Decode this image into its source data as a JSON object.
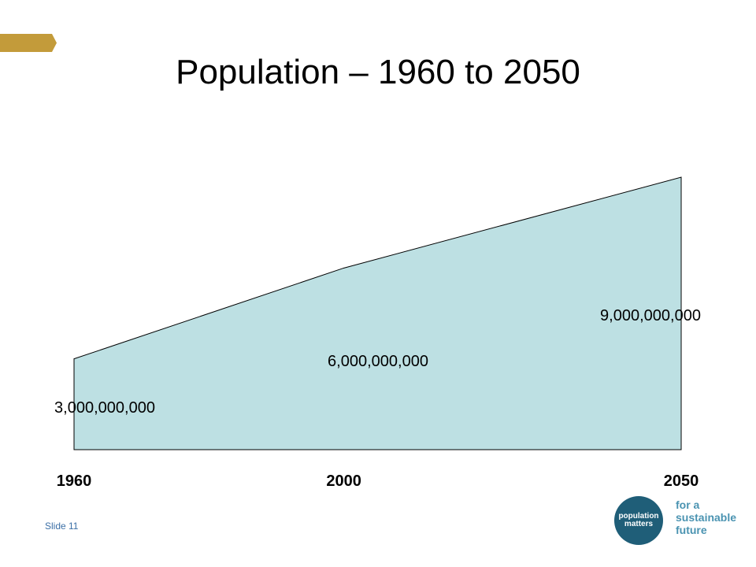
{
  "title": "Population – 1960 to 2050",
  "slide": {
    "label": "Slide 11"
  },
  "logo": {
    "line1": "population",
    "line2": "matters",
    "tagline": [
      "for a",
      "sustainable",
      "future"
    ]
  },
  "colors": {
    "accent": "#c39b3a",
    "area_fill": "#bde0e3",
    "area_stroke": "#000000",
    "logo_circle": "#1f5e78",
    "tagline": "#4a93b1",
    "slide_num": "#3b6fa6"
  },
  "chart_data": {
    "type": "area",
    "x": [
      1960,
      2000,
      2050
    ],
    "y": [
      3000000000,
      6000000000,
      9000000000
    ],
    "x_tick_labels": [
      "1960",
      "2000",
      "2050"
    ],
    "data_labels": [
      "3,000,000,000",
      "6,000,000,000",
      "9,000,000,000"
    ],
    "xlim": [
      1960,
      2050
    ],
    "ylim": [
      0,
      9000000000
    ],
    "grid": false,
    "legend": "none"
  }
}
